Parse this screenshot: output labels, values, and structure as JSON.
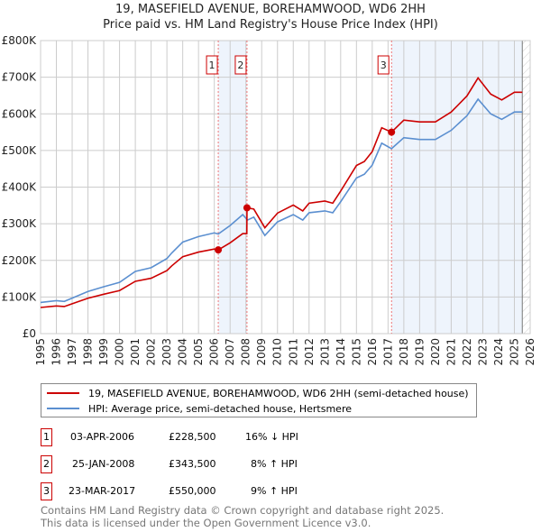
{
  "chart_data": {
    "type": "line",
    "title": "19, MASEFIELD AVENUE, BOREHAMWOOD, WD6 2HH",
    "subtitle": "Price paid vs. HM Land Registry's House Price Index (HPI)",
    "xlim": [
      1995,
      2026
    ],
    "ylim": [
      0,
      800000
    ],
    "x_ticks": [
      "1995",
      "1996",
      "1997",
      "1998",
      "1999",
      "2000",
      "2001",
      "2002",
      "2003",
      "2004",
      "2005",
      "2006",
      "2007",
      "2008",
      "2009",
      "2010",
      "2011",
      "2012",
      "2013",
      "2014",
      "2015",
      "2016",
      "2017",
      "2018",
      "2019",
      "2020",
      "2021",
      "2022",
      "2023",
      "2024",
      "2025",
      "2026"
    ],
    "y_ticks": [
      {
        "v": 0,
        "label": "£0"
      },
      {
        "v": 100000,
        "label": "£100K"
      },
      {
        "v": 200000,
        "label": "£200K"
      },
      {
        "v": 300000,
        "label": "£300K"
      },
      {
        "v": 400000,
        "label": "£400K"
      },
      {
        "v": 500000,
        "label": "£500K"
      },
      {
        "v": 600000,
        "label": "£600K"
      },
      {
        "v": 700000,
        "label": "£700K"
      },
      {
        "v": 800000,
        "label": "£800K"
      }
    ],
    "grid": true,
    "series": [
      {
        "name": "19, MASEFIELD AVENUE, BOREHAMWOOD, WD6 2HH (semi-detached house)",
        "color": "#cc0000",
        "points": [
          [
            1995,
            71400
          ],
          [
            1996,
            75600
          ],
          [
            1996.5,
            73900
          ],
          [
            1997,
            81500
          ],
          [
            1998,
            96600
          ],
          [
            1999,
            107500
          ],
          [
            2000,
            117600
          ],
          [
            2001,
            142800
          ],
          [
            2002,
            151200
          ],
          [
            2003,
            172200
          ],
          [
            2003.3,
            184800
          ],
          [
            2004,
            210000
          ],
          [
            2005,
            222600
          ],
          [
            2006,
            231000
          ],
          [
            2006.25,
            228500
          ],
          [
            2007,
            247800
          ],
          [
            2007.8,
            273000
          ],
          [
            2008.06,
            273000
          ],
          [
            2008.07,
            343500
          ],
          [
            2008.5,
            340000
          ],
          [
            2009.2,
            289000
          ],
          [
            2010,
            329000
          ],
          [
            2011,
            351000
          ],
          [
            2011.6,
            335000
          ],
          [
            2012,
            356000
          ],
          [
            2013,
            362000
          ],
          [
            2013.5,
            356000
          ],
          [
            2014,
            389000
          ],
          [
            2015,
            459000
          ],
          [
            2015.5,
            470000
          ],
          [
            2016,
            497000
          ],
          [
            2016.6,
            562000
          ],
          [
            2017.22,
            550000
          ],
          [
            2018,
            583000
          ],
          [
            2019,
            578000
          ],
          [
            2020,
            578000
          ],
          [
            2021,
            605000
          ],
          [
            2022,
            649000
          ],
          [
            2022.7,
            698000
          ],
          [
            2023.5,
            654000
          ],
          [
            2024.2,
            638000
          ],
          [
            2025,
            659000
          ],
          [
            2025.5,
            659000
          ]
        ]
      },
      {
        "name": "HPI: Average price, semi-detached house, Hertsmere",
        "color": "#5b8fd0",
        "points": [
          [
            1995,
            85000
          ],
          [
            1996,
            90000
          ],
          [
            1996.5,
            88000
          ],
          [
            1997,
            97000
          ],
          [
            1998,
            115000
          ],
          [
            1999,
            128000
          ],
          [
            2000,
            140000
          ],
          [
            2001,
            170000
          ],
          [
            2002,
            180000
          ],
          [
            2003,
            205000
          ],
          [
            2003.3,
            220000
          ],
          [
            2004,
            250000
          ],
          [
            2005,
            265000
          ],
          [
            2006,
            275000
          ],
          [
            2006.25,
            272000
          ],
          [
            2007,
            295000
          ],
          [
            2007.8,
            325000
          ],
          [
            2008.1,
            310000
          ],
          [
            2008.5,
            318000
          ],
          [
            2009.2,
            268000
          ],
          [
            2010,
            305000
          ],
          [
            2011,
            325000
          ],
          [
            2011.6,
            310000
          ],
          [
            2012,
            330000
          ],
          [
            2013,
            335000
          ],
          [
            2013.5,
            330000
          ],
          [
            2014,
            360000
          ],
          [
            2015,
            425000
          ],
          [
            2015.5,
            435000
          ],
          [
            2016,
            460000
          ],
          [
            2016.6,
            520000
          ],
          [
            2017.22,
            505000
          ],
          [
            2018,
            535000
          ],
          [
            2019,
            530000
          ],
          [
            2020,
            530000
          ],
          [
            2021,
            555000
          ],
          [
            2022,
            595000
          ],
          [
            2022.7,
            640000
          ],
          [
            2023.5,
            600000
          ],
          [
            2024.2,
            585000
          ],
          [
            2025,
            605000
          ],
          [
            2025.5,
            605000
          ]
        ]
      }
    ],
    "sales": [
      {
        "label": "1",
        "x": 2006.25,
        "price": 228500
      },
      {
        "label": "2",
        "x": 2008.07,
        "price": 343500
      },
      {
        "label": "3",
        "x": 2017.22,
        "price": 550000
      }
    ],
    "shaded_ranges": [
      [
        2006.25,
        2008.07
      ],
      [
        2017.22,
        2025.5
      ]
    ],
    "hatched_from": 2025.5,
    "legend": "bottom"
  },
  "transactions": [
    {
      "num": "1",
      "date": "03-APR-2006",
      "price": "£228,500",
      "hpi": "16% ↓ HPI"
    },
    {
      "num": "2",
      "date": "25-JAN-2008",
      "price": "£343,500",
      "hpi": "8% ↑ HPI"
    },
    {
      "num": "3",
      "date": "23-MAR-2017",
      "price": "£550,000",
      "hpi": "9% ↑ HPI"
    }
  ],
  "footer": {
    "line1": "Contains HM Land Registry data © Crown copyright and database right 2025.",
    "line2": "This data is licensed under the Open Government Licence v3.0."
  }
}
